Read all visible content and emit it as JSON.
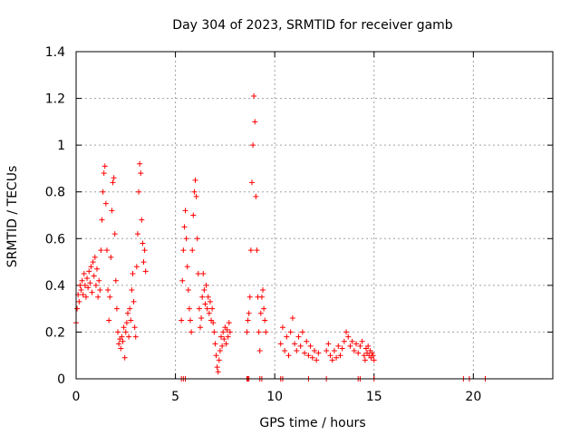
{
  "chart_data": {
    "type": "scatter",
    "title": "Day 304 of 2023, SRMTID for receiver gamb",
    "xlabel": "GPS time / hours",
    "ylabel": "SRMTID / TECUs",
    "xlim": [
      0,
      24
    ],
    "ylim": [
      0,
      1.4
    ],
    "grid": true,
    "x_ticks": [
      0,
      5,
      10,
      15,
      20
    ],
    "x_tick_labels": [
      "0",
      "5",
      "10",
      "15",
      "20"
    ],
    "y_ticks": [
      0,
      0.2,
      0.4,
      0.6,
      0.8,
      1.0,
      1.2,
      1.4
    ],
    "y_tick_labels": [
      "0",
      "0.2",
      "0.4",
      "0.6",
      "0.8",
      "1",
      "1.2",
      "1.4"
    ],
    "marker": "+",
    "color": "#ff0000",
    "series": [
      {
        "name": "SRMTID",
        "points": [
          [
            0.0,
            0.24
          ],
          [
            0.05,
            0.3
          ],
          [
            0.1,
            0.36
          ],
          [
            0.15,
            0.33
          ],
          [
            0.2,
            0.4
          ],
          [
            0.25,
            0.38
          ],
          [
            0.3,
            0.42
          ],
          [
            0.35,
            0.36
          ],
          [
            0.4,
            0.45
          ],
          [
            0.45,
            0.4
          ],
          [
            0.5,
            0.35
          ],
          [
            0.55,
            0.43
          ],
          [
            0.6,
            0.39
          ],
          [
            0.65,
            0.46
          ],
          [
            0.7,
            0.41
          ],
          [
            0.75,
            0.48
          ],
          [
            0.8,
            0.37
          ],
          [
            0.85,
            0.5
          ],
          [
            0.9,
            0.44
          ],
          [
            0.95,
            0.52
          ],
          [
            1.0,
            0.4
          ],
          [
            1.05,
            0.47
          ],
          [
            1.1,
            0.35
          ],
          [
            1.15,
            0.42
          ],
          [
            1.2,
            0.38
          ],
          [
            1.25,
            0.55
          ],
          [
            1.3,
            0.68
          ],
          [
            1.35,
            0.8
          ],
          [
            1.4,
            0.88
          ],
          [
            1.45,
            0.91
          ],
          [
            1.5,
            0.75
          ],
          [
            1.55,
            0.55
          ],
          [
            1.6,
            0.38
          ],
          [
            1.65,
            0.25
          ],
          [
            1.7,
            0.35
          ],
          [
            1.75,
            0.52
          ],
          [
            1.8,
            0.72
          ],
          [
            1.85,
            0.84
          ],
          [
            1.9,
            0.86
          ],
          [
            1.95,
            0.62
          ],
          [
            2.0,
            0.42
          ],
          [
            2.05,
            0.3
          ],
          [
            2.1,
            0.2
          ],
          [
            2.15,
            0.15
          ],
          [
            2.2,
            0.17
          ],
          [
            2.25,
            0.13
          ],
          [
            2.3,
            0.18
          ],
          [
            2.35,
            0.16
          ],
          [
            2.4,
            0.22
          ],
          [
            2.45,
            0.09
          ],
          [
            2.5,
            0.2
          ],
          [
            2.55,
            0.24
          ],
          [
            2.6,
            0.28
          ],
          [
            2.65,
            0.18
          ],
          [
            2.7,
            0.3
          ],
          [
            2.75,
            0.25
          ],
          [
            2.8,
            0.38
          ],
          [
            2.85,
            0.45
          ],
          [
            2.9,
            0.33
          ],
          [
            2.95,
            0.22
          ],
          [
            3.0,
            0.18
          ],
          [
            3.05,
            0.48
          ],
          [
            3.1,
            0.62
          ],
          [
            3.15,
            0.8
          ],
          [
            3.2,
            0.92
          ],
          [
            3.25,
            0.88
          ],
          [
            3.3,
            0.68
          ],
          [
            3.35,
            0.58
          ],
          [
            3.4,
            0.5
          ],
          [
            3.45,
            0.55
          ],
          [
            3.5,
            0.46
          ],
          [
            5.3,
            0.25
          ],
          [
            5.35,
            0.42
          ],
          [
            5.4,
            0.55
          ],
          [
            5.45,
            0.65
          ],
          [
            5.5,
            0.72
          ],
          [
            5.55,
            0.6
          ],
          [
            5.6,
            0.48
          ],
          [
            5.65,
            0.38
          ],
          [
            5.7,
            0.3
          ],
          [
            5.75,
            0.25
          ],
          [
            5.8,
            0.2
          ],
          [
            5.85,
            0.55
          ],
          [
            5.9,
            0.7
          ],
          [
            5.95,
            0.8
          ],
          [
            6.0,
            0.85
          ],
          [
            6.05,
            0.78
          ],
          [
            6.1,
            0.6
          ],
          [
            6.15,
            0.45
          ],
          [
            6.2,
            0.3
          ],
          [
            6.25,
            0.22
          ],
          [
            6.3,
            0.26
          ],
          [
            6.35,
            0.35
          ],
          [
            6.4,
            0.45
          ],
          [
            6.45,
            0.38
          ],
          [
            6.5,
            0.32
          ],
          [
            6.55,
            0.4
          ],
          [
            6.6,
            0.3
          ],
          [
            6.65,
            0.35
          ],
          [
            6.7,
            0.28
          ],
          [
            6.75,
            0.33
          ],
          [
            6.8,
            0.25
          ],
          [
            6.85,
            0.3
          ],
          [
            6.9,
            0.24
          ],
          [
            6.95,
            0.2
          ],
          [
            7.0,
            0.15
          ],
          [
            7.05,
            0.1
          ],
          [
            7.1,
            0.05
          ],
          [
            7.15,
            0.03
          ],
          [
            7.2,
            0.08
          ],
          [
            7.25,
            0.12
          ],
          [
            7.3,
            0.18
          ],
          [
            7.35,
            0.14
          ],
          [
            7.4,
            0.2
          ],
          [
            7.45,
            0.17
          ],
          [
            7.5,
            0.22
          ],
          [
            7.55,
            0.15
          ],
          [
            7.6,
            0.21
          ],
          [
            7.65,
            0.18
          ],
          [
            7.7,
            0.24
          ],
          [
            7.75,
            0.2
          ],
          [
            8.6,
            0.2
          ],
          [
            8.65,
            0.25
          ],
          [
            8.7,
            0.28
          ],
          [
            8.75,
            0.35
          ],
          [
            8.8,
            0.55
          ],
          [
            8.85,
            0.84
          ],
          [
            8.9,
            1.0
          ],
          [
            8.95,
            1.21
          ],
          [
            9.0,
            1.1
          ],
          [
            9.05,
            0.78
          ],
          [
            9.1,
            0.55
          ],
          [
            9.15,
            0.35
          ],
          [
            9.2,
            0.2
          ],
          [
            9.25,
            0.12
          ],
          [
            9.3,
            0.28
          ],
          [
            9.35,
            0.35
          ],
          [
            9.4,
            0.38
          ],
          [
            9.45,
            0.3
          ],
          [
            9.5,
            0.25
          ],
          [
            9.55,
            0.2
          ],
          [
            10.3,
            0.15
          ],
          [
            10.4,
            0.22
          ],
          [
            10.5,
            0.12
          ],
          [
            10.6,
            0.18
          ],
          [
            10.7,
            0.1
          ],
          [
            10.8,
            0.2
          ],
          [
            10.9,
            0.26
          ],
          [
            11.0,
            0.15
          ],
          [
            11.1,
            0.12
          ],
          [
            11.2,
            0.18
          ],
          [
            11.3,
            0.14
          ],
          [
            11.4,
            0.2
          ],
          [
            11.5,
            0.11
          ],
          [
            11.6,
            0.16
          ],
          [
            11.7,
            0.1
          ],
          [
            11.8,
            0.14
          ],
          [
            11.9,
            0.09
          ],
          [
            12.0,
            0.12
          ],
          [
            12.1,
            0.08
          ],
          [
            12.2,
            0.11
          ],
          [
            12.6,
            0.12
          ],
          [
            12.7,
            0.15
          ],
          [
            12.8,
            0.1
          ],
          [
            12.9,
            0.08
          ],
          [
            13.0,
            0.12
          ],
          [
            13.1,
            0.09
          ],
          [
            13.2,
            0.14
          ],
          [
            13.3,
            0.1
          ],
          [
            13.4,
            0.13
          ],
          [
            13.5,
            0.16
          ],
          [
            13.6,
            0.2
          ],
          [
            13.7,
            0.18
          ],
          [
            13.8,
            0.14
          ],
          [
            13.9,
            0.16
          ],
          [
            14.0,
            0.12
          ],
          [
            14.1,
            0.15
          ],
          [
            14.2,
            0.11
          ],
          [
            14.3,
            0.14
          ],
          [
            14.4,
            0.16
          ],
          [
            14.5,
            0.1
          ],
          [
            14.55,
            0.08
          ],
          [
            14.6,
            0.13
          ],
          [
            14.65,
            0.11
          ],
          [
            14.7,
            0.14
          ],
          [
            14.75,
            0.1
          ],
          [
            14.8,
            0.12
          ],
          [
            14.85,
            0.09
          ],
          [
            14.9,
            0.11
          ],
          [
            14.95,
            0.1
          ],
          [
            15.0,
            0.08
          ],
          [
            5.3,
            0.0
          ],
          [
            5.4,
            0.0
          ],
          [
            5.5,
            0.0
          ],
          [
            8.6,
            0.0
          ],
          [
            8.65,
            0.0
          ],
          [
            8.7,
            0.0
          ],
          [
            9.25,
            0.0
          ],
          [
            9.35,
            0.0
          ],
          [
            10.3,
            0.0
          ],
          [
            10.4,
            0.0
          ],
          [
            11.7,
            0.0
          ],
          [
            12.6,
            0.0
          ],
          [
            14.2,
            0.0
          ],
          [
            14.3,
            0.0
          ],
          [
            15.0,
            0.0
          ],
          [
            19.5,
            0.0
          ],
          [
            19.8,
            0.0
          ],
          [
            20.6,
            0.0
          ]
        ]
      }
    ]
  }
}
